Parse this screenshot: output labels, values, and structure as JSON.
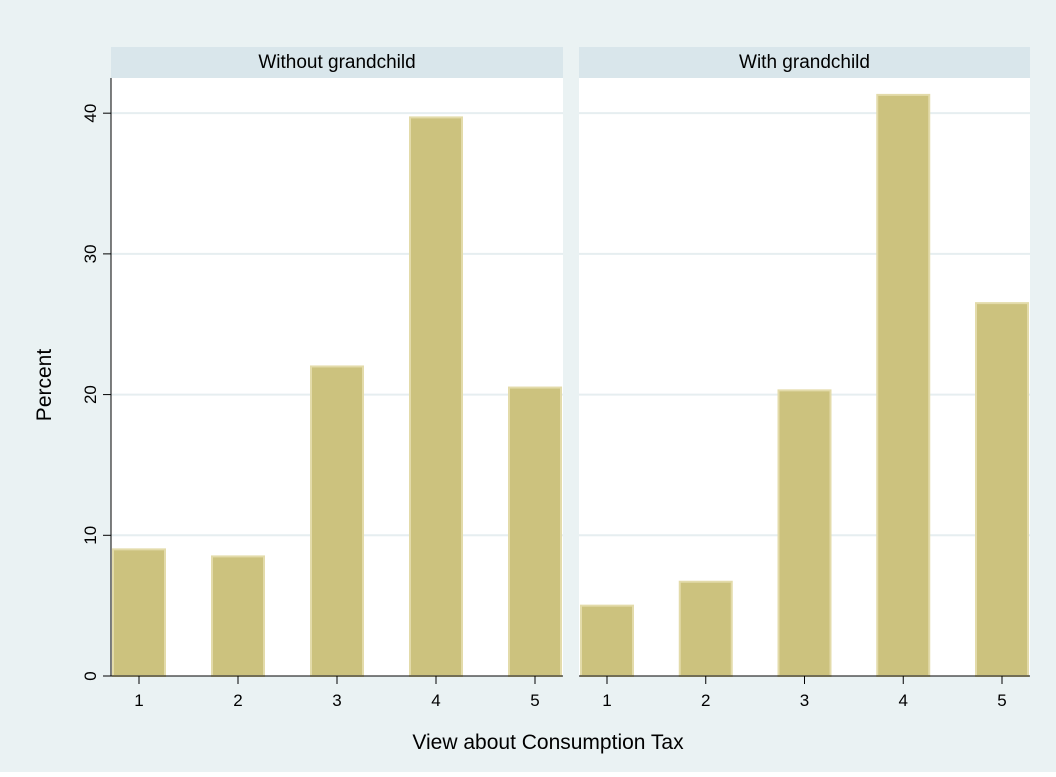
{
  "chart_data": {
    "type": "bar",
    "xlabel": "View about Consumption Tax",
    "ylabel": "Percent",
    "categories": [
      "1",
      "2",
      "3",
      "4",
      "5"
    ],
    "yticks": [
      0,
      10,
      20,
      30,
      40
    ],
    "ylim": [
      0,
      42.5
    ],
    "grid": true,
    "panels": [
      {
        "title": "Without grandchild",
        "values": [
          9.0,
          8.5,
          22.0,
          39.7,
          20.5
        ]
      },
      {
        "title": "With grandchild",
        "values": [
          5.0,
          6.7,
          20.3,
          41.3,
          26.5
        ]
      }
    ],
    "colors": {
      "background": "#eaf2f3",
      "plot_background": "#ffffff",
      "panel_header": "#d9e6eb",
      "bar_fill": "#ccc27e",
      "bar_edge": "#e3dbaa",
      "gridline": "#e6eef0"
    }
  }
}
